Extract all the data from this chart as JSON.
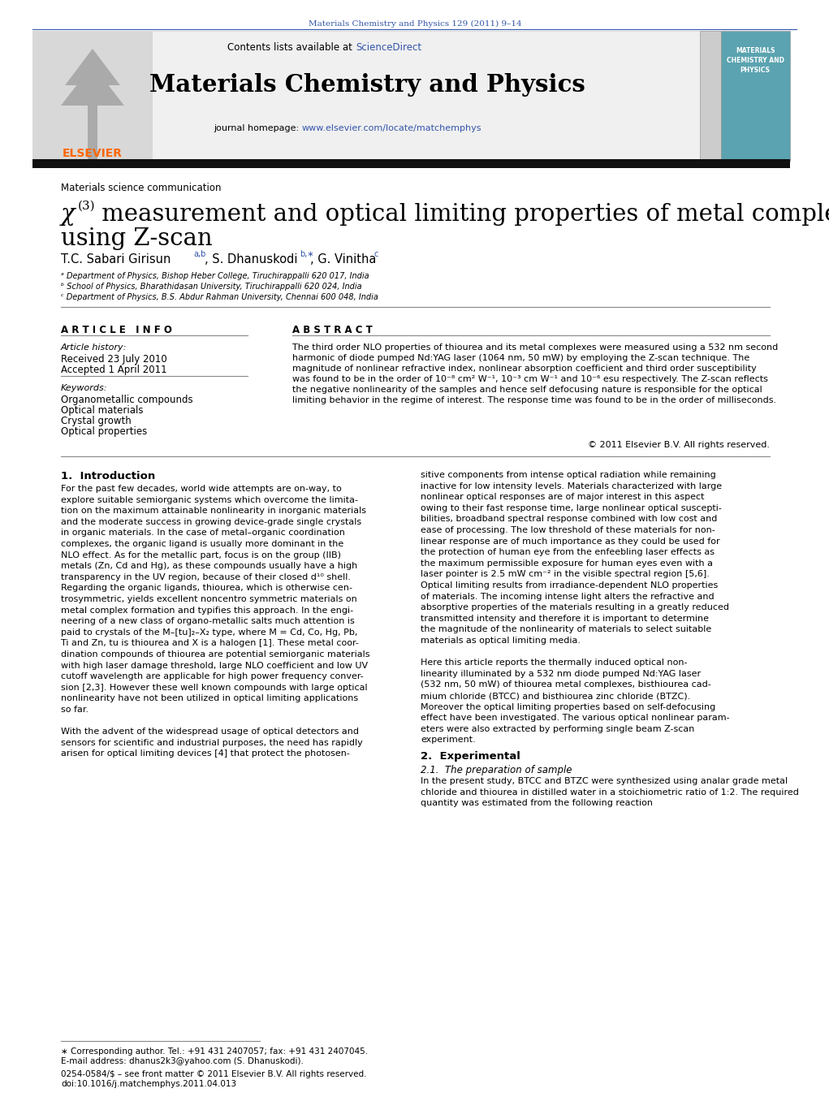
{
  "page_width": 10.21,
  "page_height": 13.51,
  "bg_color": "#ffffff",
  "top_citation": "Materials Chemistry and Physics 129 (2011) 9–14",
  "top_citation_color": "#3355aa",
  "journal_title": "Materials Chemistry and Physics",
  "contents_line": "Contents lists available at ",
  "sciencedirect_text": "ScienceDirect",
  "sciencedirect_color": "#3355aa",
  "homepage_line": "journal homepage: ",
  "homepage_url": "www.elsevier.com/locate/matchemphys",
  "homepage_url_color": "#3355aa",
  "section_label": "Materials science communication",
  "article_info_title": "A R T I C L E   I N F O",
  "abstract_title": "A B S T R A C T",
  "article_history_label": "Article history:",
  "received": "Received 23 July 2010",
  "accepted": "Accepted 1 April 2011",
  "keywords_label": "Keywords:",
  "keyword1": "Organometallic compounds",
  "keyword2": "Optical materials",
  "keyword3": "Crystal growth",
  "keyword4": "Optical properties",
  "copyright": "© 2011 Elsevier B.V. All rights reserved.",
  "intro_title": "1.  Introduction",
  "section2_title": "2.  Experimental",
  "section21_title": "2.1.  The preparation of sample",
  "footer_star": "∗ Corresponding author. Tel.: +91 431 2407057; fax: +91 431 2407045.",
  "footer_email": "E-mail address: dhanus2k3@yahoo.com (S. Dhanuskodi).",
  "footer_issn": "0254-0584/$ – see front matter © 2011 Elsevier B.V. All rights reserved.",
  "footer_doi": "doi:10.1016/j.matchemphys.2011.04.013",
  "elsevier_color": "#ff6600",
  "gray_box_color": "#f0f0f0",
  "gray_box_border": "#cccccc",
  "cover_color": "#5ba3b0",
  "affil_a": "ᵃ Department of Physics, Bishop Heber College, Tiruchirappalli 620 017, India",
  "affil_b": "ᵇ School of Physics, Bharathidasan University, Tiruchirappalli 620 024, India",
  "affil_c": "ᶜ Department of Physics, B.S. Abdur Rahman University, Chennai 600 048, India"
}
